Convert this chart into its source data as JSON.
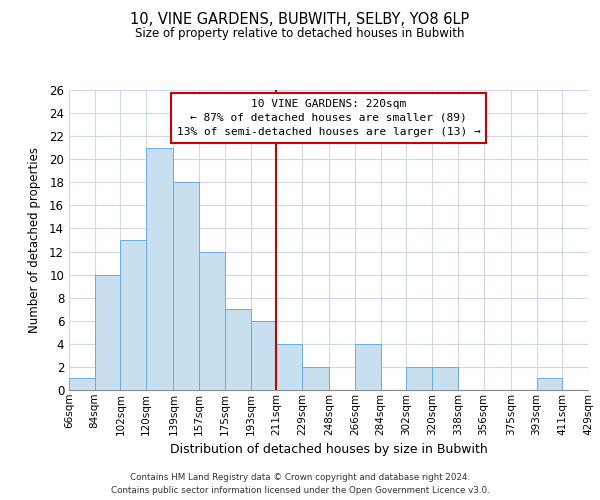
{
  "title": "10, VINE GARDENS, BUBWITH, SELBY, YO8 6LP",
  "subtitle": "Size of property relative to detached houses in Bubwith",
  "xlabel": "Distribution of detached houses by size in Bubwith",
  "ylabel": "Number of detached properties",
  "bin_edges": [
    66,
    84,
    102,
    120,
    139,
    157,
    175,
    193,
    211,
    229,
    248,
    266,
    284,
    302,
    320,
    338,
    356,
    375,
    393,
    411,
    429
  ],
  "bin_labels": [
    "66sqm",
    "84sqm",
    "102sqm",
    "120sqm",
    "139sqm",
    "157sqm",
    "175sqm",
    "193sqm",
    "211sqm",
    "229sqm",
    "248sqm",
    "266sqm",
    "284sqm",
    "302sqm",
    "320sqm",
    "338sqm",
    "356sqm",
    "375sqm",
    "393sqm",
    "411sqm",
    "429sqm"
  ],
  "counts": [
    1,
    10,
    13,
    21,
    18,
    12,
    7,
    6,
    4,
    2,
    0,
    4,
    0,
    2,
    2,
    0,
    0,
    0,
    1,
    0
  ],
  "bar_color": "#c8dff0",
  "bar_edge_color": "#6aabe0",
  "reference_line_x": 211,
  "reference_line_color": "#cc0000",
  "annotation_line1": "10 VINE GARDENS: 220sqm",
  "annotation_line2": "← 87% of detached houses are smaller (89)",
  "annotation_line3": "13% of semi-detached houses are larger (13) →",
  "ylim_max": 26,
  "yticks": [
    0,
    2,
    4,
    6,
    8,
    10,
    12,
    14,
    16,
    18,
    20,
    22,
    24,
    26
  ],
  "footer_line1": "Contains HM Land Registry data © Crown copyright and database right 2024.",
  "footer_line2": "Contains public sector information licensed under the Open Government Licence v3.0.",
  "background_color": "#ffffff",
  "grid_color": "#d0d8e8"
}
